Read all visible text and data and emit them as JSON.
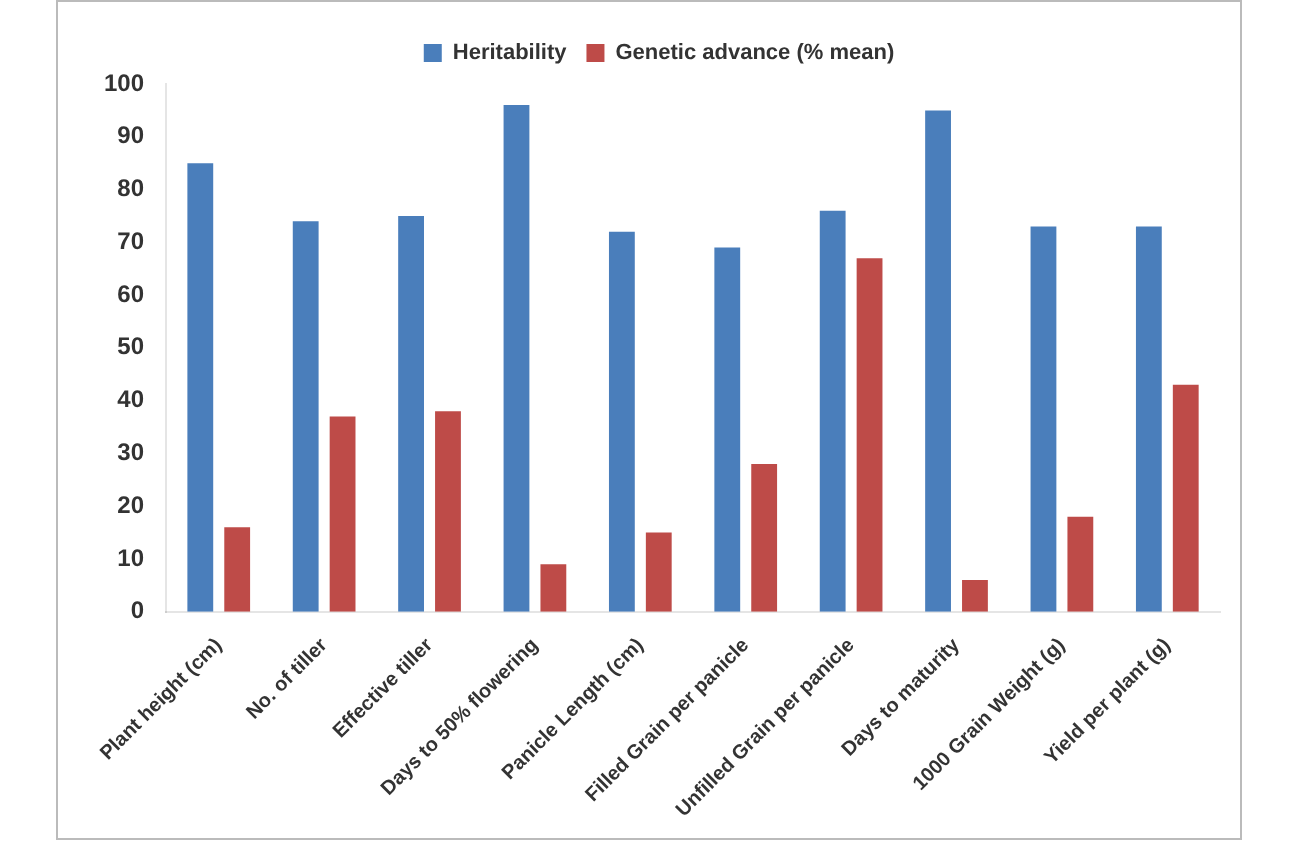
{
  "chart_data": {
    "type": "bar",
    "categories": [
      "Plant height (cm)",
      "No. of tiller",
      "Effective tiller",
      "Days to 50% flowering",
      "Panicle Length (cm)",
      "Filled Grain per panicle",
      "Unfilled Grain per panicle",
      "Days to maturity",
      "1000 Grain Weight (g)",
      "Yield per plant (g)"
    ],
    "series": [
      {
        "name": "Heritability",
        "color": "#4a7ebb",
        "values": [
          85,
          74,
          75,
          96,
          72,
          69,
          76,
          95,
          73,
          73
        ]
      },
      {
        "name": "Genetic advance (% mean)",
        "color": "#be4b48",
        "values": [
          16,
          37,
          38,
          9,
          15,
          28,
          67,
          6,
          18,
          43
        ]
      }
    ],
    "ylim": [
      0,
      100
    ],
    "yticks": [
      0,
      10,
      20,
      30,
      40,
      50,
      60,
      70,
      80,
      90,
      100
    ],
    "grid": false,
    "legend": "top"
  }
}
